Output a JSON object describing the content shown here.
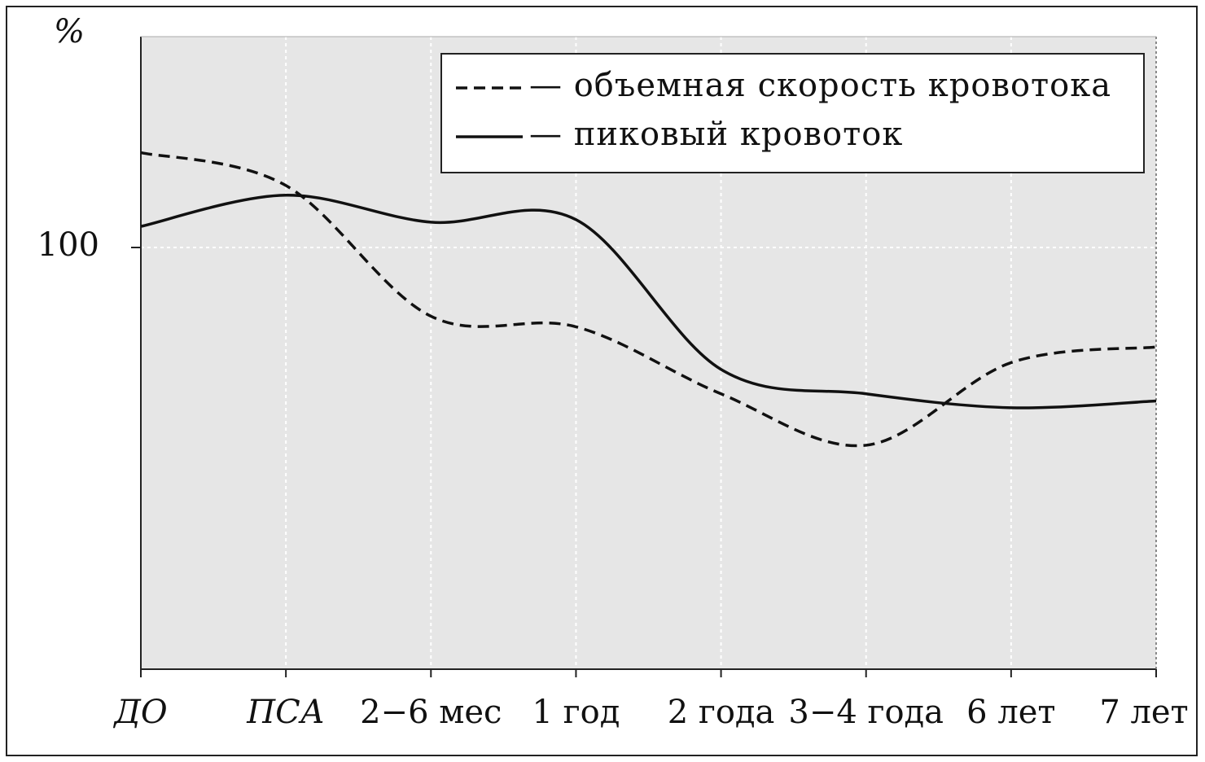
{
  "chart_data": {
    "type": "line",
    "y_label": "%",
    "categories": [
      "ДО",
      "ПСА",
      "2−6 мес",
      "1 год",
      "2 года",
      "3−4 года",
      "6 лет",
      "7 лет"
    ],
    "series": [
      {
        "name": "— объемная скорость кровотока",
        "color": "#111111",
        "dash": true,
        "values": [
          122.5,
          114.7,
          83.7,
          81.2,
          65.3,
          53.1,
          72.7,
          76.4
        ]
      },
      {
        "name": "— пиковый кровоток",
        "color": "#111111",
        "dash": false,
        "values": [
          105,
          112.4,
          106,
          106.6,
          71.1,
          65.3,
          62,
          63.6
        ]
      }
    ],
    "ylim": [
      0,
      150
    ],
    "yticks": [
      100
    ],
    "grid": true,
    "legend": "top-right"
  }
}
